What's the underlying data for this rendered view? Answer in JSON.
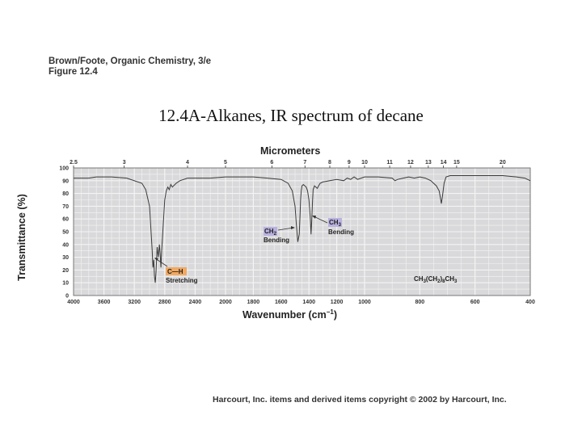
{
  "header": {
    "credit_line1": "Brown/Foote, Organic Chemistry, 3/e",
    "credit_line2": "Figure 12.4"
  },
  "title": "12.4A-Alkanes, IR spectrum of decane",
  "footer": "Harcourt, Inc. items and derived items copyright © 2002 by Harcourt, Inc.",
  "colors": {
    "plot_bg": "#d9d9db",
    "grid": "#f4f4f4",
    "trace": "#3a3a3a",
    "ch_label_bg": "#f2a960",
    "ch2_label_bg": "#b9b2e0",
    "ch3_label_bg": "#b9b2e0"
  },
  "chart_data": {
    "type": "line",
    "title": "12.4A-Alkanes, IR spectrum of decane",
    "xlabel": "Wavenumber (cm⁻¹)",
    "xlabel_main": "Wavenumber (cm",
    "xlabel_sup": "−1",
    "xlabel_close": ")",
    "x2label": "Micrometers",
    "ylabel": "Transmittance (%)",
    "xlim": [
      4000,
      400
    ],
    "ylim": [
      0,
      100
    ],
    "grid": true,
    "x_ticks": [
      4000,
      3600,
      3200,
      2800,
      2400,
      2000,
      1800,
      1600,
      1400,
      1200,
      1000,
      800,
      600,
      400
    ],
    "y_ticks": [
      0,
      10,
      20,
      30,
      40,
      50,
      60,
      70,
      80,
      90,
      100
    ],
    "micrometer_ticks": [
      "2.5",
      "3",
      "4",
      "5",
      "6",
      "7",
      "8",
      "9",
      "10",
      "11",
      "12",
      "13",
      "14",
      "15",
      "20"
    ],
    "series": [
      {
        "name": "decane",
        "x": [
          4000,
          3800,
          3700,
          3500,
          3300,
          3100,
          3050,
          3000,
          2985,
          2965,
          2955,
          2945,
          2935,
          2925,
          2915,
          2900,
          2885,
          2870,
          2860,
          2850,
          2840,
          2820,
          2800,
          2780,
          2760,
          2740,
          2720,
          2700,
          2650,
          2600,
          2500,
          2400,
          2200,
          2000,
          1900,
          1800,
          1700,
          1600,
          1550,
          1520,
          1500,
          1490,
          1480,
          1470,
          1465,
          1460,
          1455,
          1450,
          1440,
          1430,
          1420,
          1410,
          1400,
          1390,
          1385,
          1380,
          1375,
          1370,
          1360,
          1350,
          1340,
          1330,
          1320,
          1300,
          1250,
          1200,
          1150,
          1125,
          1100,
          1075,
          1050,
          1000,
          950,
          900,
          890,
          880,
          860,
          840,
          820,
          800,
          780,
          760,
          750,
          740,
          730,
          725,
          722,
          718,
          712,
          705,
          690,
          650,
          600,
          500,
          450,
          420,
          400
        ],
        "y": [
          92,
          92,
          93,
          93,
          92,
          88,
          83,
          70,
          55,
          35,
          22,
          28,
          15,
          10,
          18,
          38,
          30,
          40,
          32,
          22,
          35,
          55,
          75,
          82,
          85,
          83,
          87,
          85,
          88,
          90,
          92,
          92,
          92,
          93,
          93,
          93,
          92,
          91,
          88,
          82,
          70,
          55,
          42,
          48,
          60,
          75,
          82,
          86,
          87,
          86,
          85,
          82,
          75,
          60,
          48,
          58,
          72,
          83,
          86,
          85,
          84,
          86,
          88,
          89,
          90,
          91,
          90,
          92,
          91,
          93,
          91,
          93,
          93,
          92,
          90,
          91,
          92,
          93,
          92,
          93,
          92,
          90,
          88,
          86,
          82,
          76,
          72,
          78,
          88,
          93,
          94,
          94,
          94,
          94,
          93,
          92,
          90
        ]
      }
    ],
    "annotations": [
      {
        "label_main": "C—H",
        "label_sub": "Stretching",
        "target_wavenumber": 2900,
        "target_t": 30
      },
      {
        "label_main": "CH",
        "label_subscript": "2",
        "label_sub": "Bending",
        "target_wavenumber": 1470,
        "target_t": 50
      },
      {
        "label_main": "CH",
        "label_subscript": "3",
        "label_sub": "Bending",
        "target_wavenumber": 1380,
        "target_t": 60
      },
      {
        "label": "CH3(CH2)8CH3",
        "parts": [
          "CH",
          "3",
          "(CH",
          "2",
          ")",
          "8",
          "CH",
          "3"
        ]
      }
    ]
  }
}
